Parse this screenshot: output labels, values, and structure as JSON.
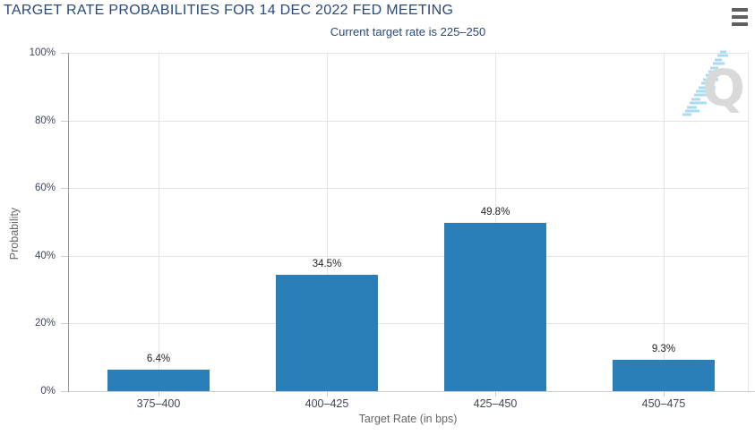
{
  "chart_data": {
    "type": "bar",
    "title": "TARGET RATE PROBABILITIES FOR 14 DEC 2022 FED MEETING",
    "subtitle": "Current target rate is 225–250",
    "categories": [
      "375–400",
      "400–425",
      "425–450",
      "450–475"
    ],
    "values": [
      6.4,
      34.5,
      49.8,
      9.3
    ],
    "data_labels": [
      "6.4%",
      "34.5%",
      "49.8%",
      "9.3%"
    ],
    "xlabel": "Target Rate (in bps)",
    "ylabel": "Probability",
    "ylim": [
      0,
      100
    ],
    "ytick_labels": [
      "0%",
      "20%",
      "40%",
      "60%",
      "80%",
      "100%"
    ],
    "grid": true,
    "legend_position": "none",
    "bar_color": "#2b7fb9"
  },
  "menu": {
    "icon": "hamburger-menu-icon"
  },
  "watermark": {
    "letter": "Q"
  },
  "colors": {
    "title_text": "#28497a",
    "bar_fill": "#2b7fb9",
    "axis_title_text": "#666666",
    "tick_label_text": "#3f4759",
    "data_label_text": "#222222",
    "gridline": "#e4e4e4",
    "y_axis_line": "#999999",
    "x_axis_line": "#cccccc",
    "tick_mark": "#cccccc",
    "menu_icon": "#616161",
    "watermark_letter": "#d9d9d9",
    "watermark_dashes": "#a9dbf3"
  }
}
